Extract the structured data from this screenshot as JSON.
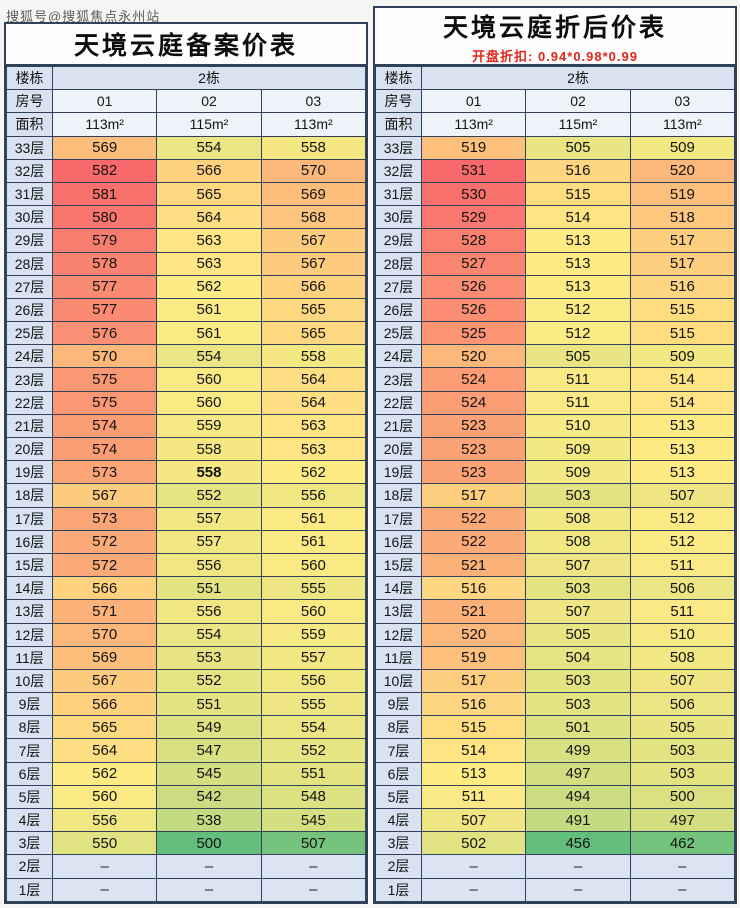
{
  "watermark": "搜狐号@搜狐焦点永州站",
  "dash": "–",
  "colors": {
    "heatmap_min_green": "#63BE7B",
    "heatmap_mid_yellow": "#FFEB84",
    "heatmap_max_red": "#F8696B",
    "grid_line": "#32415A",
    "label_cell_bg": "#D8E2F1",
    "header_cell_bg": "#EEF3FA",
    "empty_cell_bg": "#DAE4F2",
    "subtitle_red": "#E1251B"
  },
  "header": {
    "building_label": "楼栋",
    "room_label": "房号",
    "area_label": "面积"
  },
  "emphasized_cell": {
    "table_index": 0,
    "floor": "19层",
    "room_index": 1
  },
  "chart_data": [
    {
      "type": "heatmap",
      "title": "天境云庭备案价表",
      "subtitle": "",
      "building": "2栋",
      "rooms": [
        "01",
        "02",
        "03"
      ],
      "areas": [
        "113m²",
        "115m²",
        "113m²"
      ],
      "floors": [
        "33层",
        "32层",
        "31层",
        "30层",
        "29层",
        "28层",
        "27层",
        "26层",
        "25层",
        "24层",
        "23层",
        "22层",
        "21层",
        "20层",
        "19层",
        "18层",
        "17层",
        "16层",
        "15层",
        "14层",
        "13层",
        "12层",
        "11层",
        "10层",
        "9层",
        "8层",
        "7层",
        "6层",
        "5层",
        "4层",
        "3层",
        "2层",
        "1层"
      ],
      "values": [
        [
          569,
          554,
          558
        ],
        [
          582,
          566,
          570
        ],
        [
          581,
          565,
          569
        ],
        [
          580,
          564,
          568
        ],
        [
          579,
          563,
          567
        ],
        [
          578,
          563,
          567
        ],
        [
          577,
          562,
          566
        ],
        [
          577,
          561,
          565
        ],
        [
          576,
          561,
          565
        ],
        [
          570,
          554,
          558
        ],
        [
          575,
          560,
          564
        ],
        [
          575,
          560,
          564
        ],
        [
          574,
          559,
          563
        ],
        [
          574,
          558,
          563
        ],
        [
          573,
          558,
          562
        ],
        [
          567,
          552,
          556
        ],
        [
          573,
          557,
          561
        ],
        [
          572,
          557,
          561
        ],
        [
          572,
          556,
          560
        ],
        [
          566,
          551,
          555
        ],
        [
          571,
          556,
          560
        ],
        [
          570,
          554,
          559
        ],
        [
          569,
          553,
          557
        ],
        [
          567,
          552,
          556
        ],
        [
          566,
          551,
          555
        ],
        [
          565,
          549,
          554
        ],
        [
          564,
          547,
          552
        ],
        [
          562,
          545,
          551
        ],
        [
          560,
          542,
          548
        ],
        [
          556,
          538,
          545
        ],
        [
          550,
          500,
          507
        ],
        [
          null,
          null,
          null
        ],
        [
          null,
          null,
          null
        ]
      ]
    },
    {
      "type": "heatmap",
      "title": "天境云庭折后价表",
      "subtitle": "开盘折扣: 0.94*0.98*0.99",
      "building": "2栋",
      "rooms": [
        "01",
        "02",
        "03"
      ],
      "areas": [
        "113m²",
        "115m²",
        "113m²"
      ],
      "floors": [
        "33层",
        "32层",
        "31层",
        "30层",
        "29层",
        "28层",
        "27层",
        "26层",
        "25层",
        "24层",
        "23层",
        "22层",
        "21层",
        "20层",
        "19层",
        "18层",
        "17层",
        "16层",
        "15层",
        "14层",
        "13层",
        "12层",
        "11层",
        "10层",
        "9层",
        "8层",
        "7层",
        "6层",
        "5层",
        "4层",
        "3层",
        "2层",
        "1层"
      ],
      "values": [
        [
          519,
          505,
          509
        ],
        [
          531,
          516,
          520
        ],
        [
          530,
          515,
          519
        ],
        [
          529,
          514,
          518
        ],
        [
          528,
          513,
          517
        ],
        [
          527,
          513,
          517
        ],
        [
          526,
          513,
          516
        ],
        [
          526,
          512,
          515
        ],
        [
          525,
          512,
          515
        ],
        [
          520,
          505,
          509
        ],
        [
          524,
          511,
          514
        ],
        [
          524,
          511,
          514
        ],
        [
          523,
          510,
          513
        ],
        [
          523,
          509,
          513
        ],
        [
          523,
          509,
          513
        ],
        [
          517,
          503,
          507
        ],
        [
          522,
          508,
          512
        ],
        [
          522,
          508,
          512
        ],
        [
          521,
          507,
          511
        ],
        [
          516,
          503,
          506
        ],
        [
          521,
          507,
          511
        ],
        [
          520,
          505,
          510
        ],
        [
          519,
          504,
          508
        ],
        [
          517,
          503,
          507
        ],
        [
          516,
          503,
          506
        ],
        [
          515,
          501,
          505
        ],
        [
          514,
          499,
          503
        ],
        [
          513,
          497,
          503
        ],
        [
          511,
          494,
          500
        ],
        [
          507,
          491,
          497
        ],
        [
          502,
          456,
          462
        ],
        [
          null,
          null,
          null
        ],
        [
          null,
          null,
          null
        ]
      ]
    }
  ]
}
